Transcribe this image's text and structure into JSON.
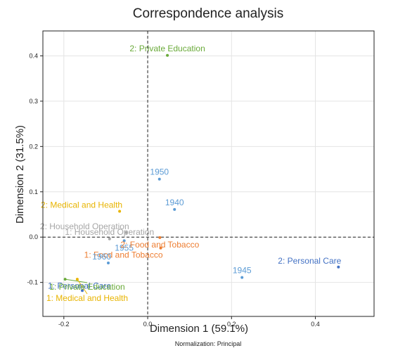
{
  "chart_data": {
    "type": "scatter",
    "title": "Correspondence analysis",
    "xlabel": "Dimension 1 (59.1%)",
    "ylabel": "Dimension 2 (31.5%)",
    "note": "Normalization: Principal",
    "xlim": [
      -0.25,
      0.54
    ],
    "ylim": [
      -0.175,
      0.455
    ],
    "xticks": [
      -0.2,
      0.0,
      0.2,
      0.4
    ],
    "yticks": [
      -0.1,
      0.0,
      0.1,
      0.2,
      0.3,
      0.4
    ],
    "xtick_labels": [
      "-0.2",
      "0.0",
      "0.2",
      "0.4"
    ],
    "ytick_labels": [
      "-0.1",
      "0.0",
      "0.1",
      "0.2",
      "0.3",
      "0.4"
    ],
    "grid": true,
    "reference_lines": {
      "x": 0,
      "y": 0,
      "style": "dashed"
    },
    "points": [
      {
        "label": "2: Private Education",
        "x": 0.047,
        "y": 0.401,
        "color": "#6aaa3a",
        "label_pos": "above"
      },
      {
        "label": "1950",
        "x": 0.028,
        "y": 0.128,
        "color": "#5b9bd5",
        "label_pos": "above"
      },
      {
        "label": "1940",
        "x": 0.064,
        "y": 0.061,
        "color": "#5b9bd5",
        "label_pos": "above"
      },
      {
        "label": "2: Medical and Health",
        "x": -0.067,
        "y": 0.057,
        "color": "#e8b400",
        "label_pos": "above-left"
      },
      {
        "label": "2: Household Operation",
        "x": -0.051,
        "y": 0.01,
        "color": "#a6a6a6",
        "label_pos": "above-left"
      },
      {
        "label": "1: Household Operation",
        "x": -0.091,
        "y": -0.004,
        "color": "#a6a6a6",
        "label_pos": "above"
      },
      {
        "label": "1955",
        "x": -0.056,
        "y": -0.008,
        "color": "#5b9bd5",
        "label_pos": "below"
      },
      {
        "label": "2: Food and Tobacco",
        "x": 0.029,
        "y": -0.001,
        "color": "#ed7d31",
        "label_pos": "below"
      },
      {
        "label": "1: Food and Tobacco",
        "x": 0.031,
        "y": -0.024,
        "color": "#ed7d31",
        "label_pos": "below-left"
      },
      {
        "label": "1960",
        "x": -0.094,
        "y": -0.057,
        "color": "#5b9bd5",
        "label_pos": "above-left"
      },
      {
        "label": "1945",
        "x": 0.225,
        "y": -0.089,
        "color": "#5b9bd5",
        "label_pos": "above"
      },
      {
        "label": "2: Personal Care",
        "x": 0.455,
        "y": -0.066,
        "color": "#4472c4",
        "label_pos": "above-left"
      },
      {
        "label": "1: Personal Care",
        "x": -0.156,
        "y": -0.118,
        "color": "#4472c4",
        "label_pos": "right"
      },
      {
        "label": "1: Private Education",
        "x": -0.197,
        "y": -0.093,
        "color": "#6aaa3a",
        "label_pos": "below-leader"
      },
      {
        "label": "1: Medical and Health",
        "x": -0.168,
        "y": -0.093,
        "color": "#e8b400",
        "label_pos": "below-leader"
      }
    ]
  }
}
